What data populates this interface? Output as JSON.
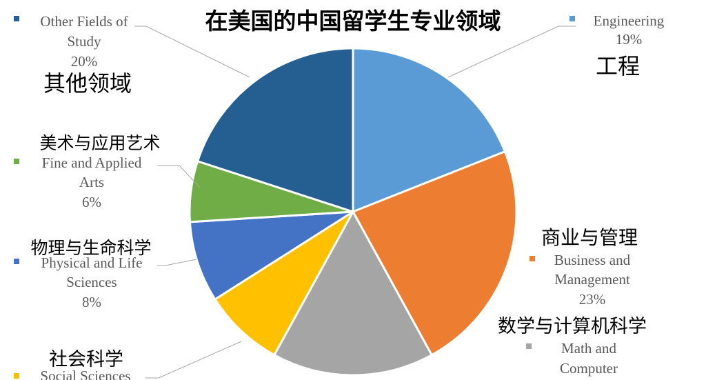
{
  "chart_data": {
    "type": "pie",
    "title": "在美国的中国留学生专业领域",
    "slices": [
      {
        "label": "Engineering",
        "label_zh": "工程",
        "value": 19,
        "value_label": "19%",
        "color": "#5B9BD5"
      },
      {
        "label": "Business and Management",
        "label_zh": "商业与管理",
        "value": 23,
        "value_label": "23%",
        "color": "#ED7D31"
      },
      {
        "label": "Math and Computer Science",
        "label_zh": "数学与计算机科学",
        "value": 16,
        "value_label": "",
        "color": "#A5A5A5"
      },
      {
        "label": "Social Sciences",
        "label_zh": "社会科学",
        "value": 8,
        "value_label": "",
        "color": "#FFC000"
      },
      {
        "label": "Physical and Life Sciences",
        "label_zh": "物理与生命科学",
        "value": 8,
        "value_label": "8%",
        "color": "#4472C4"
      },
      {
        "label": "Fine and Applied Arts",
        "label_zh": "美术与应用艺术",
        "value": 6,
        "value_label": "6%",
        "color": "#70AD47"
      },
      {
        "label": "Other Fields of Study",
        "label_zh": "其他领域",
        "value": 20,
        "value_label": "20%",
        "color": "#255E91"
      }
    ],
    "legend": "none"
  },
  "labels": {
    "engineering": {
      "en1": "Engineering",
      "pct": "19%",
      "zh": "工程"
    },
    "business": {
      "zh": "商业与管理",
      "en1": "Business and",
      "en2": "Management",
      "pct": "23%"
    },
    "math": {
      "zh": "数学与计算机科学",
      "en1": "Math and",
      "en2": "Computer"
    },
    "social": {
      "zh": "社会科学",
      "en1": "Social Sciences"
    },
    "physical": {
      "zh": "物理与生命科学",
      "en1": "Physical and Life",
      "en2": "Sciences",
      "pct": "8%"
    },
    "arts": {
      "zh": "美术与应用艺术",
      "en1": "Fine and Applied",
      "en2": "Arts",
      "pct": "6%"
    },
    "other": {
      "en1": "Other Fields of",
      "en2": "Study",
      "pct": "20%",
      "zh": "其他领域"
    }
  }
}
